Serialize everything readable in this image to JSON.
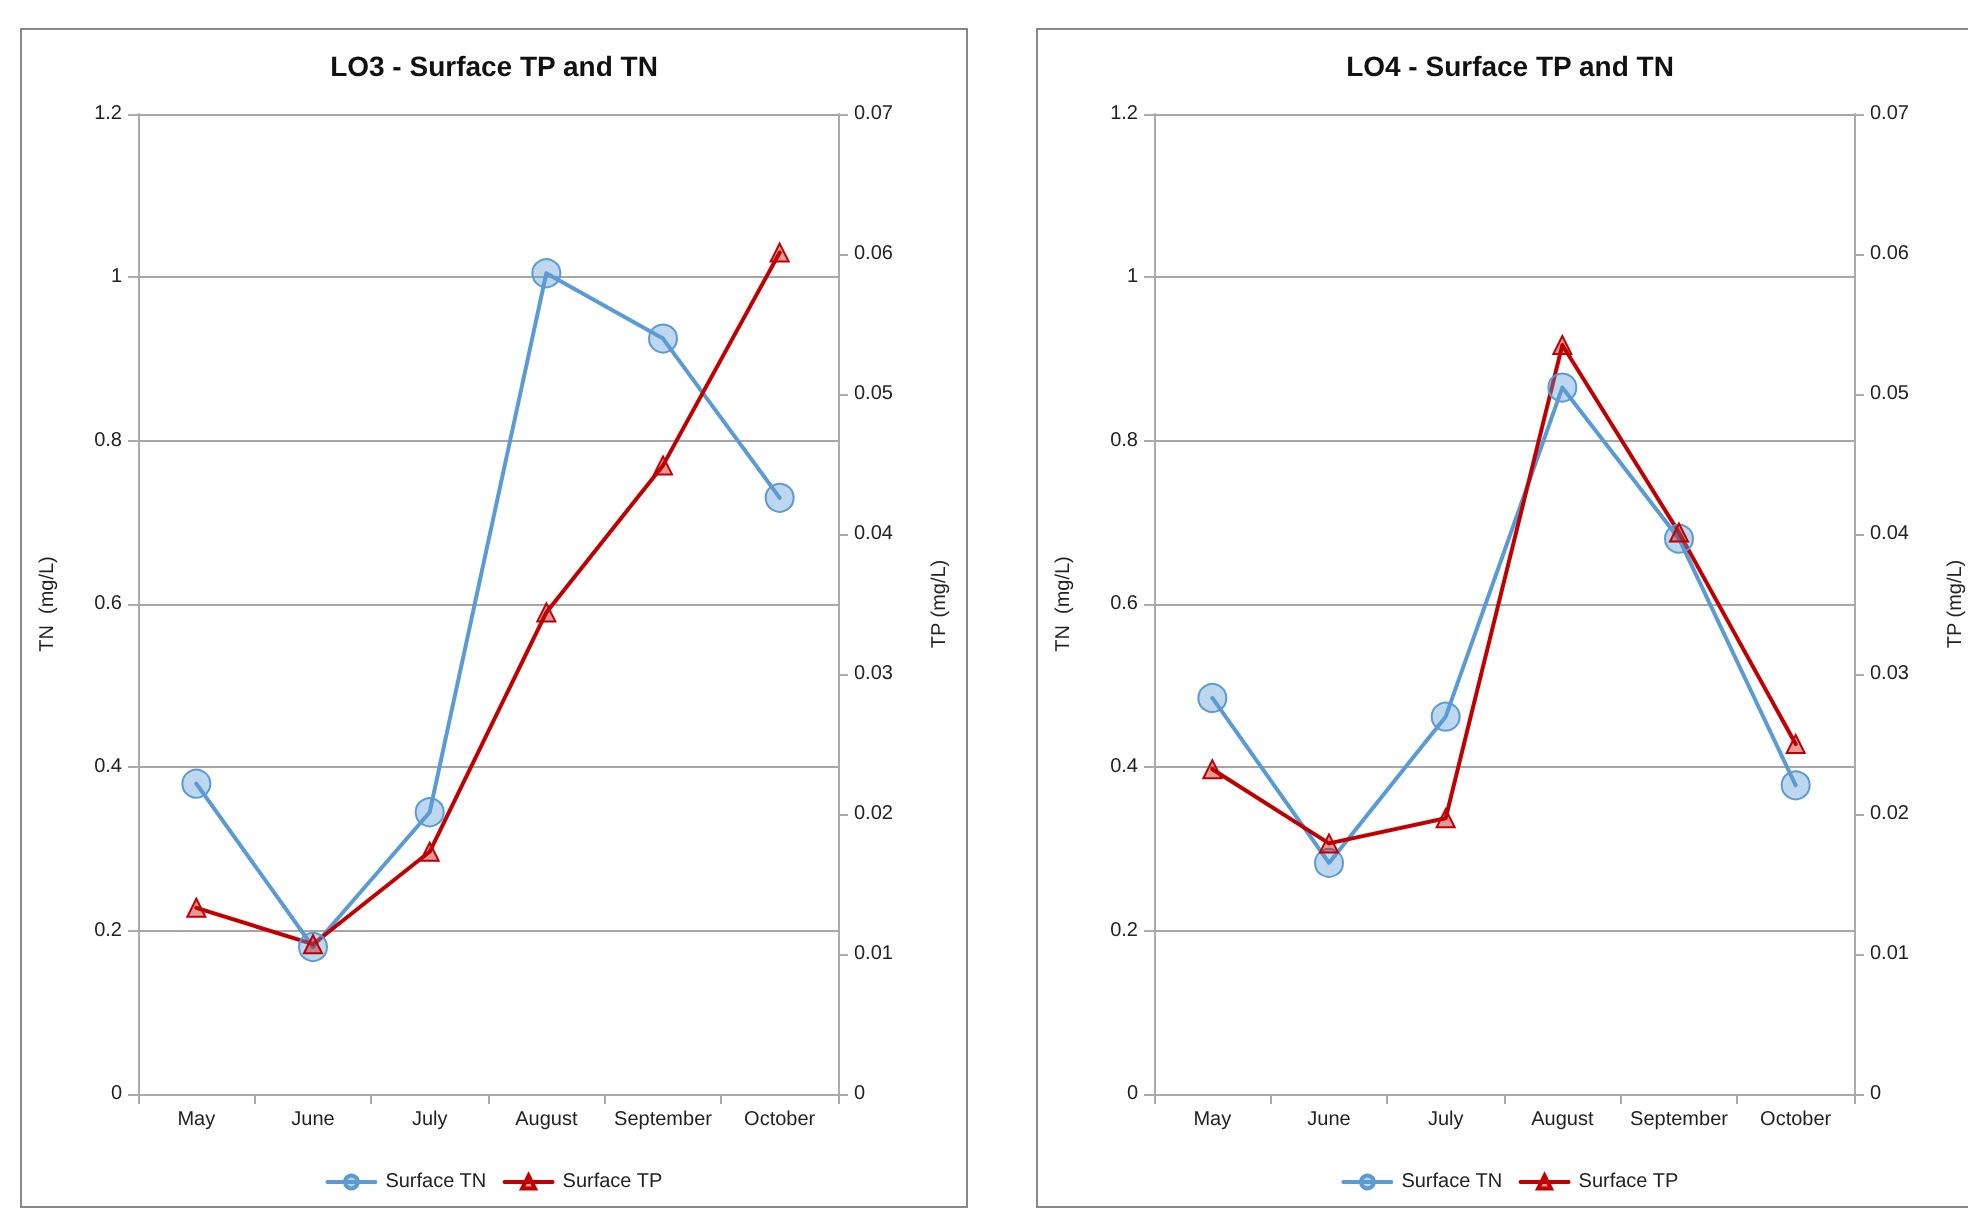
{
  "chart_data": [
    {
      "type": "line",
      "title": "LO3 - Surface TP and TN",
      "ylabel": "TN  (mg/L)",
      "y2label": "TP (mg/L)",
      "categories": [
        "May",
        "June",
        "July",
        "August",
        "September",
        "October"
      ],
      "series": [
        {
          "name": "Surface TN",
          "color": "#5b9bd5",
          "marker": "circle",
          "values": [
            0.38,
            0.18,
            0.345,
            1.005,
            0.925,
            0.73
          ]
        },
        {
          "name": "Surface TP",
          "color": "#c00000",
          "marker": "triangle",
          "axis": "y2",
          "values": [
            0.0133,
            0.0107,
            0.0173,
            0.0344,
            0.0449,
            0.0601
          ]
        }
      ],
      "ylim": [
        0,
        1.2
      ],
      "yticks": [
        0,
        0.2,
        0.4,
        0.6,
        0.8,
        1,
        1.2
      ],
      "y2lim": [
        0,
        0.07
      ],
      "y2ticks": [
        0,
        0.01,
        0.02,
        0.03,
        0.04,
        0.05,
        0.06,
        0.07
      ],
      "grid": "y",
      "legend": "bottom"
    },
    {
      "type": "line",
      "title": "LO4 - Surface TP and TN",
      "ylabel": "TN  (mg/L)",
      "y2label": "TP (mg/L)",
      "categories": [
        "May",
        "June",
        "July",
        "August",
        "September",
        "October"
      ],
      "series": [
        {
          "name": "Surface TN",
          "color": "#5b9bd5",
          "marker": "circle",
          "values": [
            0.485,
            0.283,
            0.462,
            0.865,
            0.68,
            0.378
          ]
        },
        {
          "name": "Surface TP",
          "color": "#c00000",
          "marker": "triangle",
          "axis": "y2",
          "values": [
            0.0232,
            0.0179,
            0.0197,
            0.0535,
            0.0401,
            0.025
          ]
        }
      ],
      "ylim": [
        0,
        1.2
      ],
      "yticks": [
        0,
        0.2,
        0.4,
        0.6,
        0.8,
        1,
        1.2
      ],
      "y2lim": [
        0,
        0.07
      ],
      "y2ticks": [
        0,
        0.01,
        0.02,
        0.03,
        0.04,
        0.05,
        0.06,
        0.07
      ],
      "grid": "y",
      "legend": "bottom"
    }
  ]
}
